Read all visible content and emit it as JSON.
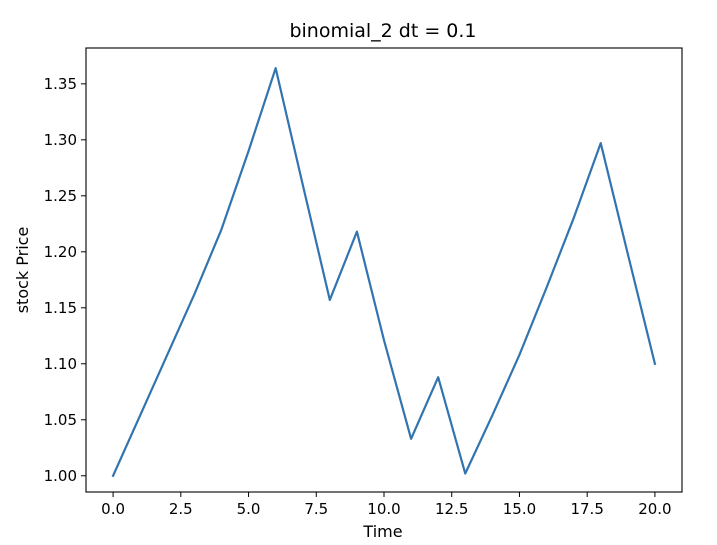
{
  "chart_data": {
    "type": "line",
    "title": "binomial_2 dt = 0.1",
    "xlabel": "Time",
    "ylabel": "stock Price",
    "xlim": [
      -1.0,
      21.0
    ],
    "ylim": [
      0.9855,
      1.382
    ],
    "x_ticks": [
      0.0,
      2.5,
      5.0,
      7.5,
      10.0,
      12.5,
      15.0,
      17.5,
      20.0
    ],
    "x_tick_labels": [
      "0.0",
      "2.5",
      "5.0",
      "7.5",
      "10.0",
      "12.5",
      "15.0",
      "17.5",
      "20.0"
    ],
    "y_ticks": [
      1.0,
      1.05,
      1.1,
      1.15,
      1.2,
      1.25,
      1.3,
      1.35
    ],
    "y_tick_labels": [
      "1.00",
      "1.05",
      "1.10",
      "1.15",
      "1.20",
      "1.25",
      "1.30",
      "1.35"
    ],
    "grid": false,
    "series": [
      {
        "color": "#3274b0",
        "x": [
          0,
          1,
          2,
          3,
          4,
          5,
          6,
          7,
          8,
          9,
          10,
          11,
          12,
          13,
          14,
          15,
          16,
          17,
          18,
          19,
          20
        ],
        "y": [
          1.0,
          1.054,
          1.108,
          1.162,
          1.22,
          1.29,
          1.364,
          1.26,
          1.157,
          1.218,
          1.121,
          1.033,
          1.088,
          1.002,
          1.054,
          1.108,
          1.168,
          1.23,
          1.297,
          1.198,
          1.1
        ]
      }
    ]
  }
}
